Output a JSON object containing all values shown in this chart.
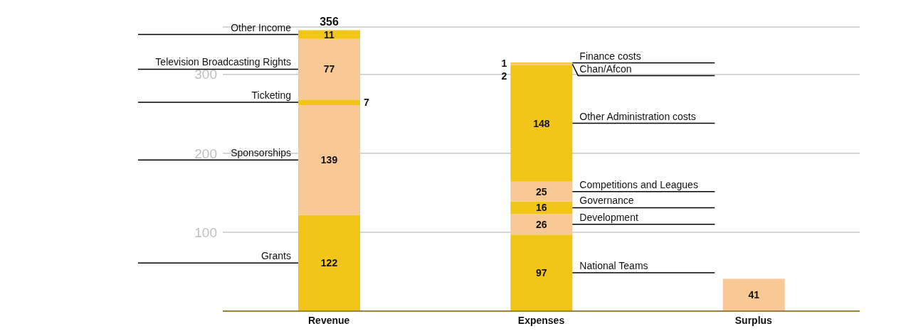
{
  "chart_data": {
    "type": "bar",
    "stacked": true,
    "categories": [
      "Revenue",
      "Expenses",
      "Surplus"
    ],
    "series": [
      {
        "name": "Grants",
        "color": "#f2c618",
        "values": [
          122,
          null,
          null
        ]
      },
      {
        "name": "Sponsorships",
        "color": "#f9c995",
        "values": [
          139,
          null,
          null
        ]
      },
      {
        "name": "Ticketing",
        "color": "#f2c618",
        "values": [
          7,
          null,
          null
        ]
      },
      {
        "name": "Television Broadcasting Rights",
        "color": "#f9c995",
        "values": [
          77,
          null,
          null
        ]
      },
      {
        "name": "Other Income",
        "color": "#f2c618",
        "values": [
          11,
          null,
          null
        ]
      },
      {
        "name": "National Teams",
        "color": "#f2c618",
        "values": [
          null,
          97,
          null
        ]
      },
      {
        "name": "Development",
        "color": "#f9c995",
        "values": [
          null,
          26,
          null
        ]
      },
      {
        "name": "Governance",
        "color": "#f2c618",
        "values": [
          null,
          16,
          null
        ]
      },
      {
        "name": "Competitions and Leagues",
        "color": "#f9c995",
        "values": [
          null,
          25,
          null
        ]
      },
      {
        "name": "Other Administration costs",
        "color": "#f2c618",
        "values": [
          null,
          148,
          null
        ]
      },
      {
        "name": "Chan/Afcon",
        "color": "#f9c995",
        "values": [
          null,
          2,
          null
        ]
      },
      {
        "name": "Finance costs",
        "color": "#f2c618",
        "values": [
          null,
          1,
          null
        ]
      },
      {
        "color": "#f9c995",
        "values": [
          null,
          null,
          41
        ]
      }
    ],
    "ylim": [
      0,
      360
    ],
    "yticks": [
      100,
      200,
      300
    ],
    "grid": "y",
    "data_labels": true,
    "totals": [
      "356",
      null,
      null
    ]
  }
}
